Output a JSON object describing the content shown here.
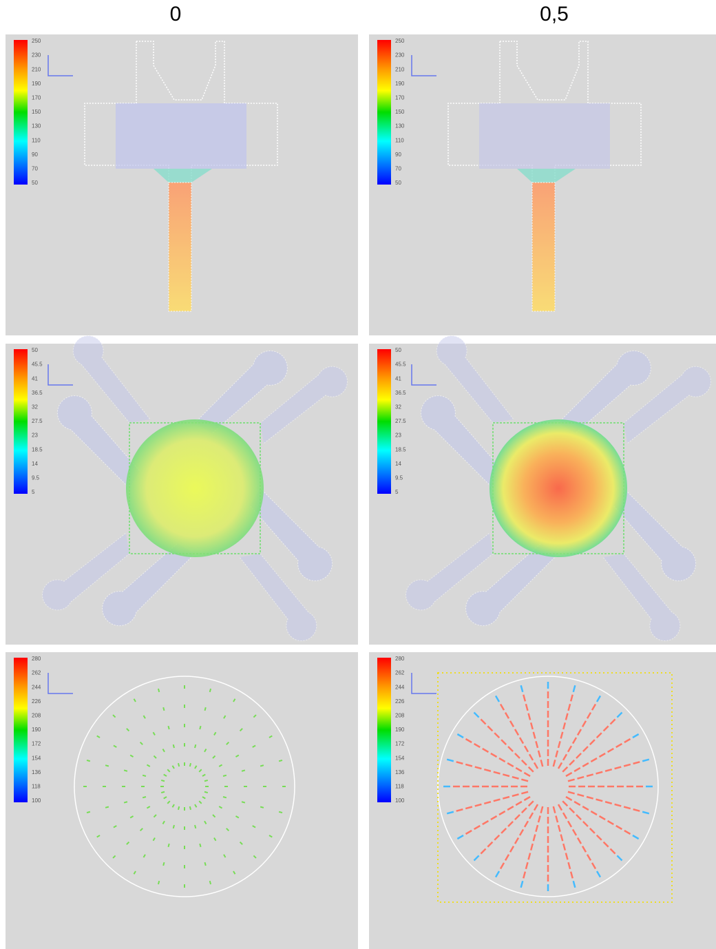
{
  "headers": [
    "0",
    "0,5"
  ],
  "rows": [
    {
      "legend_labels": [
        "250",
        "230",
        "210",
        "190",
        "170",
        "150",
        "130",
        "110",
        "90",
        "70",
        "50"
      ]
    },
    {
      "legend_labels": [
        "50",
        "45.5",
        "41",
        "36.5",
        "32",
        "27.5",
        "23",
        "18.5",
        "14",
        "9.5",
        "5"
      ]
    },
    {
      "legend_labels": [
        "280",
        "262",
        "244",
        "226",
        "208",
        "190",
        "172",
        "154",
        "136",
        "118",
        "100"
      ]
    }
  ]
}
